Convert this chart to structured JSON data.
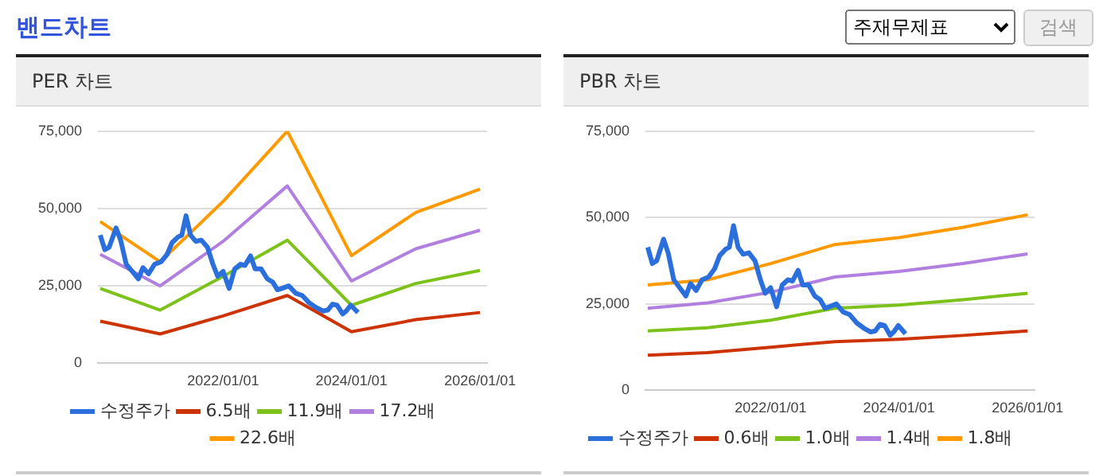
{
  "chart_data": [
    {
      "type": "line",
      "title": "PER 차트",
      "annotations": [
        "밴드차트",
        "주재무제표",
        "검색"
      ],
      "legend": "bottom",
      "grid": "y",
      "marker": "none",
      "line_style": "solid",
      "xlim": [
        "2020-01-20",
        "2026-02-10"
      ],
      "xticks": [
        {
          "value": "2022-01-01",
          "label": "2022/01/01"
        },
        {
          "value": "2024-01-01",
          "label": "2024/01/01"
        },
        {
          "value": "2026-01-01",
          "label": "2026/01/01"
        }
      ],
      "ylim": [
        0,
        75000
      ],
      "yticks": [
        {
          "value": 0,
          "label": "0"
        },
        {
          "value": 25000,
          "label": "25,000"
        },
        {
          "value": 50000,
          "label": "50,000"
        },
        {
          "value": 75000,
          "label": "75,000"
        }
      ],
      "series": [
        {
          "name": "수정주가",
          "color": "#2a6fdb",
          "x": [
            "2020-02-02",
            "2020-02-28",
            "2020-03-24",
            "2020-05-02",
            "2020-05-28",
            "2020-06-29",
            "2020-08-02",
            "2020-09-06",
            "2020-10-02",
            "2020-11-03",
            "2020-12-07",
            "2021-01-13",
            "2021-02-16",
            "2021-03-17",
            "2021-04-21",
            "2021-05-11",
            "2021-06-04",
            "2021-06-30",
            "2021-07-29",
            "2021-08-30",
            "2021-10-04",
            "2021-11-04",
            "2021-12-01",
            "2022-01-01",
            "2022-02-04",
            "2022-03-08",
            "2022-04-09",
            "2022-05-05",
            "2022-06-06",
            "2022-07-02",
            "2022-08-05",
            "2022-09-09",
            "2022-10-10",
            "2022-11-06",
            "2022-12-01",
            "2023-01-10",
            "2023-02-18",
            "2023-03-27",
            "2023-05-06",
            "2023-06-15",
            "2023-07-24",
            "2023-08-19",
            "2023-09-15",
            "2023-10-11",
            "2023-11-12",
            "2023-12-02",
            "2023-12-28",
            "2024-02-07"
          ],
          "values": [
            41400,
            36700,
            37500,
            43750,
            39800,
            32000,
            29700,
            27300,
            30900,
            28900,
            32000,
            32800,
            35150,
            39000,
            40900,
            41400,
            47650,
            41400,
            39400,
            39800,
            37500,
            32000,
            28100,
            29700,
            24200,
            30500,
            32000,
            31600,
            34700,
            30500,
            30500,
            27300,
            26250,
            23750,
            24200,
            25000,
            22650,
            21900,
            19500,
            18000,
            16900,
            17200,
            19100,
            18750,
            15950,
            16900,
            18750,
            16400
          ]
        },
        {
          "name": "6.5배",
          "color": "#cc3300",
          "x": [
            "2020-02-02",
            "2021-01-08",
            "2022-01-01",
            "2023-01-01",
            "2024-01-01",
            "2025-01-01",
            "2026-01-01"
          ],
          "values": [
            13600,
            9500,
            15300,
            21900,
            10200,
            14100,
            16400
          ]
        },
        {
          "name": "11.9배",
          "color": "#7cc21a",
          "x": [
            "2020-02-02",
            "2021-01-08",
            "2022-01-01",
            "2023-01-01",
            "2024-01-01",
            "2025-01-01",
            "2026-01-01"
          ],
          "values": [
            24200,
            17200,
            28100,
            39800,
            18750,
            25800,
            30000
          ]
        },
        {
          "name": "17.2배",
          "color": "#b07fe0",
          "x": [
            "2020-02-02",
            "2021-01-08",
            "2022-01-01",
            "2023-01-01",
            "2024-01-01",
            "2025-01-01",
            "2026-01-01"
          ],
          "values": [
            35200,
            25000,
            39400,
            57300,
            26600,
            37000,
            43000
          ]
        },
        {
          "name": "22.6배",
          "color": "#ff9900",
          "x": [
            "2020-02-02",
            "2021-01-08",
            "2022-01-01",
            "2023-01-01",
            "2024-01-01",
            "2025-01-01",
            "2026-01-01"
          ],
          "values": [
            45800,
            32800,
            52300,
            75000,
            34800,
            48750,
            56250
          ]
        }
      ]
    },
    {
      "type": "line",
      "title": "PBR 차트",
      "legend": "bottom",
      "grid": "y",
      "marker": "none",
      "line_style": "solid",
      "xlim": [
        "2020-01-20",
        "2026-02-10"
      ],
      "xticks": [
        {
          "value": "2022-01-01",
          "label": "2022/01/01"
        },
        {
          "value": "2024-01-01",
          "label": "2024/01/01"
        },
        {
          "value": "2026-01-01",
          "label": "2026/01/01"
        }
      ],
      "ylim": [
        0,
        75000
      ],
      "yticks": [
        {
          "value": 0,
          "label": "0"
        },
        {
          "value": 25000,
          "label": "25,000"
        },
        {
          "value": 50000,
          "label": "50,000"
        },
        {
          "value": 75000,
          "label": "75,000"
        }
      ],
      "series": [
        {
          "name": "수정주가",
          "color": "#2a6fdb",
          "x": [
            "2020-02-02",
            "2020-02-28",
            "2020-03-24",
            "2020-05-02",
            "2020-05-28",
            "2020-06-29",
            "2020-08-02",
            "2020-09-06",
            "2020-10-02",
            "2020-11-03",
            "2020-12-07",
            "2021-01-13",
            "2021-02-16",
            "2021-03-17",
            "2021-04-21",
            "2021-05-11",
            "2021-06-04",
            "2021-06-30",
            "2021-07-29",
            "2021-08-30",
            "2021-10-04",
            "2021-11-04",
            "2021-12-01",
            "2022-01-01",
            "2022-02-04",
            "2022-03-08",
            "2022-04-09",
            "2022-05-05",
            "2022-06-06",
            "2022-07-02",
            "2022-08-05",
            "2022-09-09",
            "2022-10-10",
            "2022-11-06",
            "2022-12-01",
            "2023-01-10",
            "2023-02-18",
            "2023-03-27",
            "2023-05-06",
            "2023-06-15",
            "2023-07-24",
            "2023-08-19",
            "2023-09-15",
            "2023-10-11",
            "2023-11-12",
            "2023-12-02",
            "2023-12-28",
            "2024-02-07"
          ],
          "values": [
            41400,
            36700,
            37500,
            43750,
            39800,
            32000,
            29700,
            27300,
            30900,
            28900,
            32000,
            32800,
            35150,
            39000,
            40900,
            41400,
            47650,
            41400,
            39400,
            39800,
            37500,
            32000,
            28100,
            29700,
            24200,
            30500,
            32000,
            31600,
            34700,
            30500,
            30500,
            27300,
            26250,
            23750,
            24200,
            25000,
            22650,
            21900,
            19500,
            18000,
            16900,
            17200,
            19100,
            18750,
            15950,
            16900,
            18750,
            16400
          ]
        },
        {
          "name": "0.6배",
          "color": "#cc3300",
          "x": [
            "2020-02-02",
            "2021-01-08",
            "2022-01-01",
            "2023-01-01",
            "2024-01-01",
            "2025-01-01",
            "2026-01-01"
          ],
          "values": [
            10150,
            10900,
            12500,
            14100,
            14800,
            15900,
            17200
          ]
        },
        {
          "name": "1.0배",
          "color": "#7cc21a",
          "x": [
            "2020-02-02",
            "2021-01-08",
            "2022-01-01",
            "2023-01-01",
            "2024-01-01",
            "2025-01-01",
            "2026-01-01"
          ],
          "values": [
            17200,
            18100,
            20300,
            23750,
            24700,
            26250,
            28100
          ]
        },
        {
          "name": "1.4배",
          "color": "#b07fe0",
          "x": [
            "2020-02-02",
            "2021-01-08",
            "2022-01-01",
            "2023-01-01",
            "2024-01-01",
            "2025-01-01",
            "2026-01-01"
          ],
          "values": [
            23750,
            25300,
            28400,
            32800,
            34400,
            36700,
            39500
          ]
        },
        {
          "name": "1.8배",
          "color": "#ff9900",
          "x": [
            "2020-02-02",
            "2021-01-08",
            "2022-01-01",
            "2023-01-01",
            "2024-01-01",
            "2025-01-01",
            "2026-01-01"
          ],
          "values": [
            30500,
            32000,
            36700,
            42200,
            44200,
            47200,
            50800
          ]
        }
      ]
    }
  ]
}
